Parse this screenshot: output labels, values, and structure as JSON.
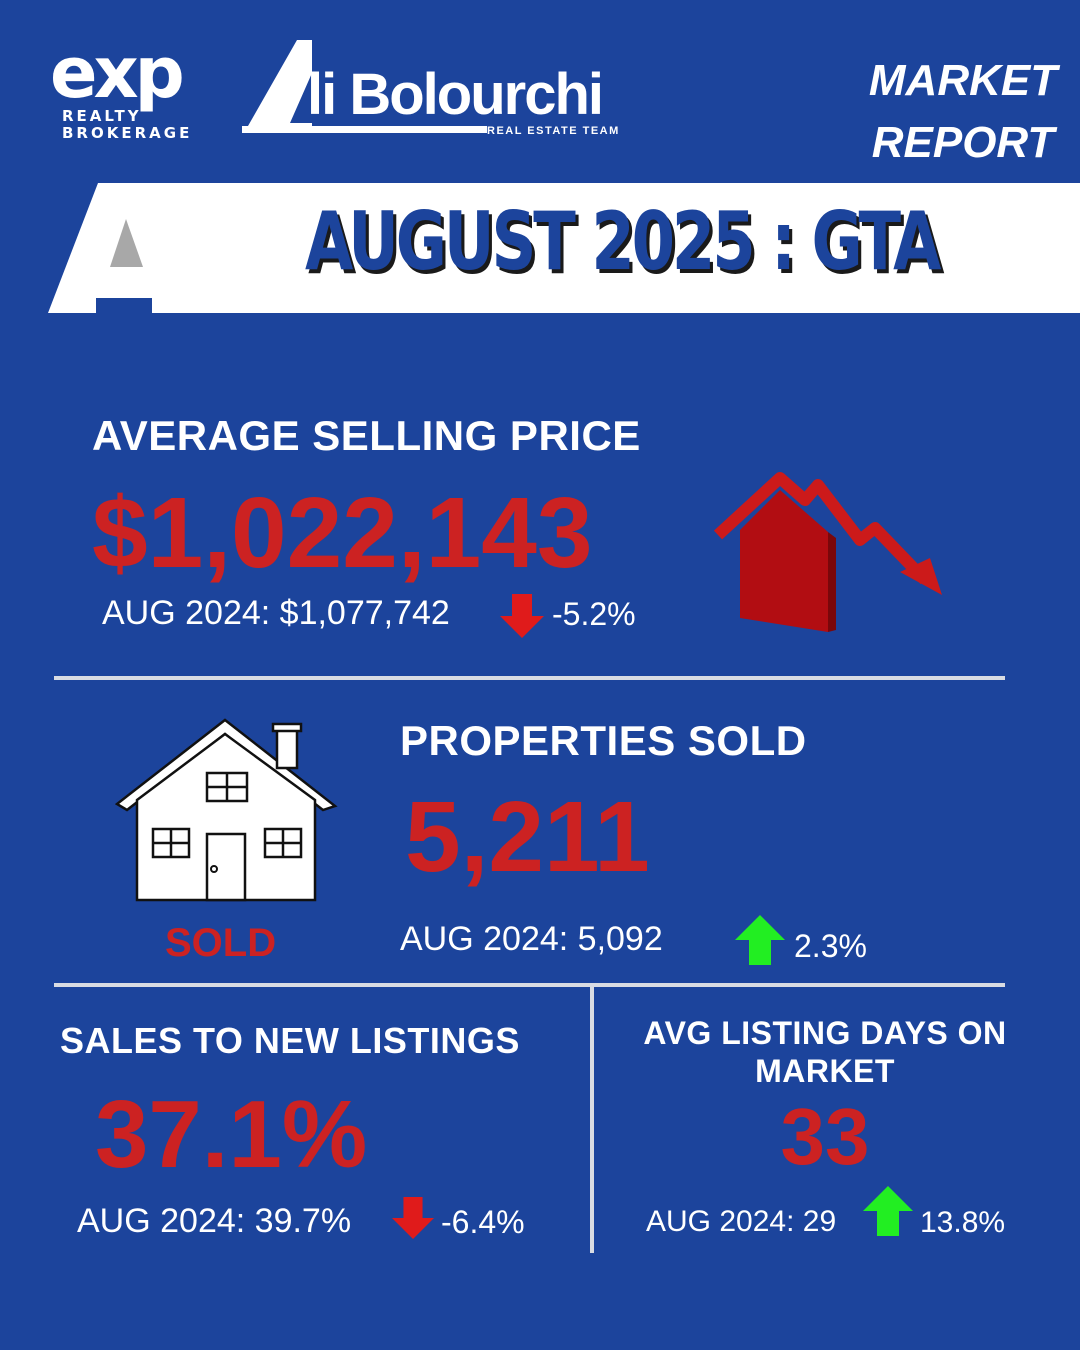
{
  "header": {
    "exp_logo": {
      "word": "exp",
      "line1": "REALTY",
      "line2": "BROKERAGE"
    },
    "team_logo": {
      "name": "li Bolourchi",
      "tagline": "REAL ESTATE TEAM"
    },
    "report_line1": "MARKET",
    "report_line2": "REPORT"
  },
  "banner": {
    "title": "AUGUST 2025 : GTA"
  },
  "avg_price": {
    "label": "AVERAGE SELLING PRICE",
    "value": "$1,022,143",
    "comparison": "AUG 2024: $1,077,742",
    "change": "-5.2%",
    "direction": "down"
  },
  "properties_sold": {
    "label": "PROPERTIES SOLD",
    "value": "5,211",
    "comparison": "AUG 2024: 5,092",
    "change": "2.3%",
    "direction": "up",
    "house_caption": "SOLD"
  },
  "sales_to_new": {
    "label": "SALES TO NEW LISTINGS",
    "value": "37.1%",
    "comparison": "AUG 2024: 39.7%",
    "change": "-6.4%",
    "direction": "down"
  },
  "days_on_market": {
    "label_line1": "AVG LISTING DAYS ON",
    "label_line2": "MARKET",
    "value": "33",
    "comparison": "AUG 2024: 29",
    "change": "13.8%",
    "direction": "up"
  },
  "colors": {
    "background": "#1c449c",
    "value_red": "#cc2222",
    "down_arrow": "#e01b1b",
    "up_arrow": "#22ee22",
    "divider": "#d9dce3"
  }
}
